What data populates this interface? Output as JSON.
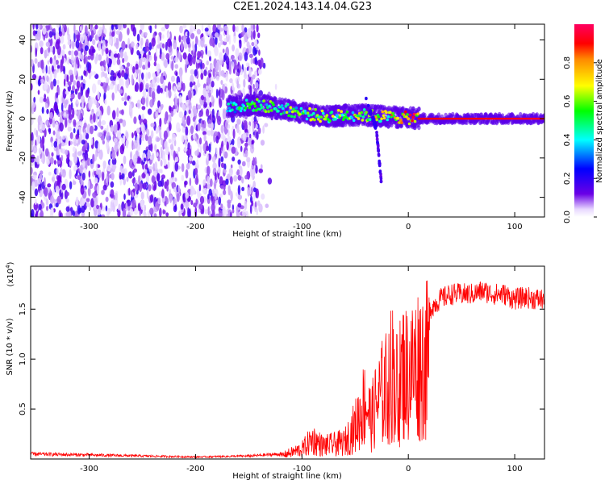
{
  "title": "C2E1.2024.143.14.04.G23",
  "chart_data": [
    {
      "type": "heatmap",
      "xlabel": "Height of straight line (km)",
      "ylabel": "Frequency (Hz)",
      "xlim": [
        -355,
        128
      ],
      "ylim": [
        -50,
        48
      ],
      "xticks": [
        -300,
        -200,
        -100,
        0,
        100
      ],
      "yticks": [
        -40,
        -20,
        0,
        20,
        40
      ],
      "colorbar": {
        "label": "Normalized spectral amplitude",
        "range": [
          0,
          1
        ],
        "ticks": [
          "0.0",
          "0.2",
          "0.4",
          "0.6",
          "0.8"
        ],
        "colors": [
          "#ffffff",
          "#e8d8ff",
          "#6a00e6",
          "#0000ff",
          "#00ffff",
          "#00ff00",
          "#ffff00",
          "#ff0000",
          "#ff0060"
        ]
      },
      "features": {
        "noise_region_x": [
          -355,
          -140
        ],
        "noise_amplitude": 0.15,
        "signal_track": [
          {
            "x": -170,
            "f": 6,
            "a": 0.5
          },
          {
            "x": -140,
            "f": 7,
            "a": 0.55
          },
          {
            "x": -110,
            "f": 4,
            "a": 0.6
          },
          {
            "x": -80,
            "f": 1,
            "a": 0.6
          },
          {
            "x": -50,
            "f": 2,
            "a": 0.65
          },
          {
            "x": -20,
            "f": 1,
            "a": 0.75
          },
          {
            "x": 10,
            "f": 0,
            "a": 0.9
          },
          {
            "x": 128,
            "f": 0,
            "a": 0.95
          }
        ],
        "descending_branch": [
          {
            "x": -40,
            "f": 10
          },
          {
            "x": -30,
            "f": -5
          },
          {
            "x": -25,
            "f": -35
          }
        ]
      }
    },
    {
      "type": "line",
      "xlabel": "Height of straight line (km)",
      "ylabel": "SNR (10 * v/v)",
      "yscale_label": "(x10",
      "yscale_exp": "4",
      "xlim": [
        -355,
        128
      ],
      "ylim": [
        0,
        1.93
      ],
      "xticks": [
        -300,
        -200,
        -100,
        0,
        100
      ],
      "yticks": [
        "0.5",
        "1.0",
        "1.5"
      ],
      "color": "#ff0000",
      "series": [
        {
          "x": [
            -355,
            -300,
            -250,
            -200,
            -150,
            -120,
            -100,
            -90,
            -80,
            -60,
            -50,
            -40,
            -35,
            -30,
            -25,
            -20,
            -15,
            -10,
            -5,
            0,
            10,
            20,
            30,
            40,
            50,
            60,
            70,
            80,
            90,
            100,
            110,
            120,
            128
          ],
          "y": [
            0.05,
            0.04,
            0.03,
            0.02,
            0.03,
            0.05,
            0.15,
            0.3,
            0.2,
            0.25,
            0.5,
            0.9,
            0.6,
            0.85,
            1.0,
            1.1,
            1.4,
            1.05,
            1.35,
            1.3,
            1.5,
            1.5,
            1.6,
            1.65,
            1.65,
            1.65,
            1.68,
            1.65,
            1.65,
            1.6,
            1.62,
            1.6,
            1.6
          ]
        }
      ]
    }
  ]
}
